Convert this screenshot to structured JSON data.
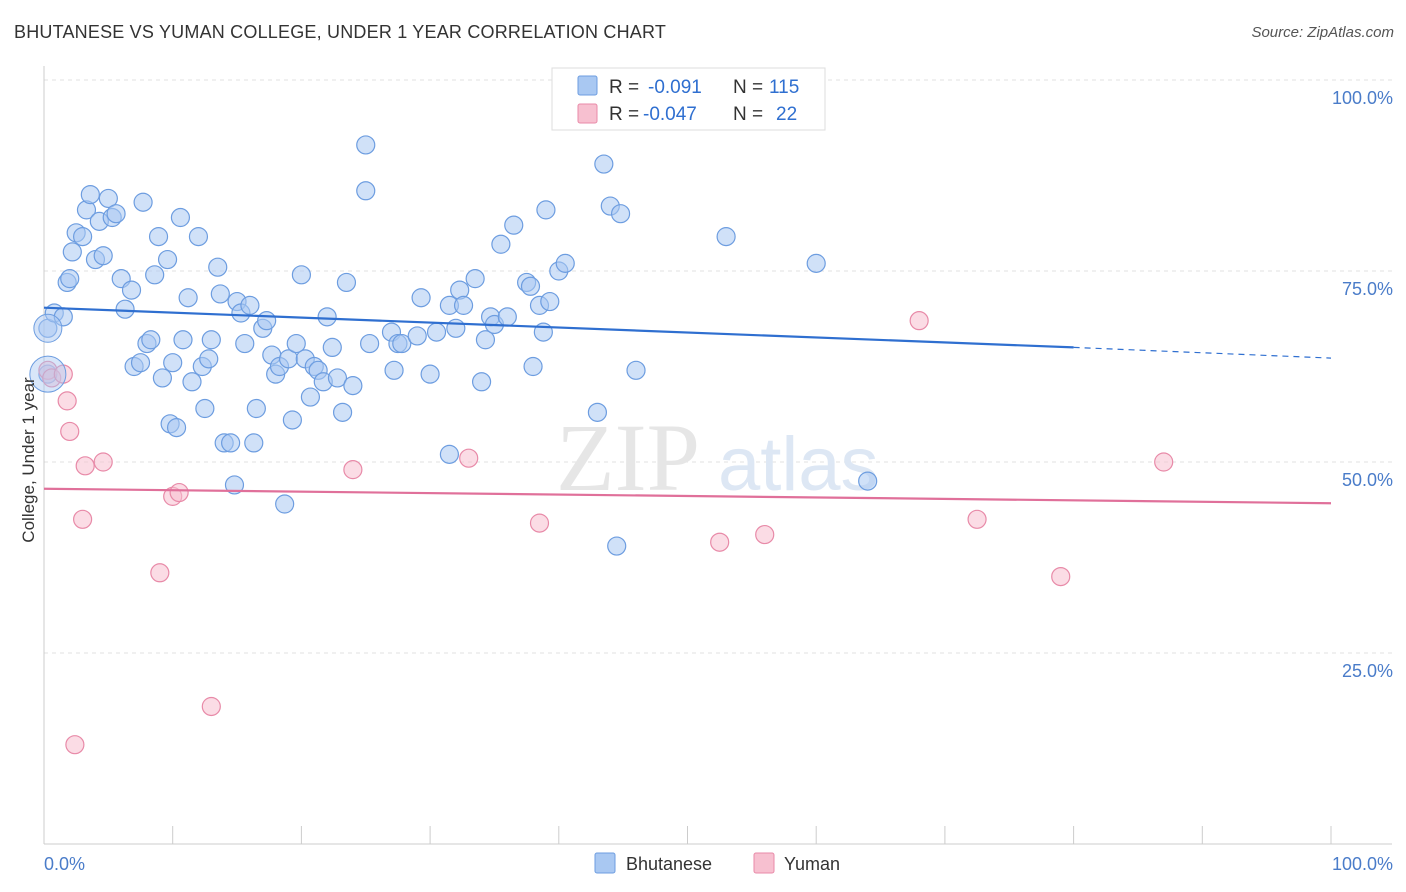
{
  "title": "BHUTANESE VS YUMAN COLLEGE, UNDER 1 YEAR CORRELATION CHART",
  "source": "Source: ZipAtlas.com",
  "watermark": {
    "zip": "ZIP",
    "atlas": "atlas"
  },
  "legend": [
    {
      "r_label": "R =",
      "r_value": "-0.091",
      "n_label": "N =",
      "n_value": "115",
      "color": "#a9c8f2",
      "stroke": "#6d9de0"
    },
    {
      "r_label": "R =",
      "r_value": "-0.047",
      "n_label": "N =",
      "n_value": "22",
      "color": "#f7c0d0",
      "stroke": "#e88aa8"
    }
  ],
  "chart_data": {
    "type": "scatter",
    "xlabel": "",
    "ylabel": "College, Under 1 year",
    "xlim": [
      0,
      100
    ],
    "ylim": [
      0,
      100
    ],
    "x_tick_labels": [
      "0.0%",
      "100.0%"
    ],
    "y_ticks": [
      25,
      50,
      75,
      100
    ],
    "y_tick_labels": [
      "25.0%",
      "50.0%",
      "75.0%",
      "100.0%"
    ],
    "series": [
      {
        "name": "Bhutanese",
        "color": "#a9c8f2",
        "stroke": "#6d9de0",
        "line_color": "#2f6fd0",
        "trend": {
          "x0": 0,
          "y0": 70.2,
          "x1": 80,
          "y1": 65.0,
          "dash_to_x": 100,
          "dash_to_y": 63.6
        },
        "points": [
          [
            0.3,
            67.5
          ],
          [
            0.3,
            61.5
          ],
          [
            0.8,
            69.5
          ],
          [
            1.5,
            69
          ],
          [
            1.8,
            73.5
          ],
          [
            2.0,
            74
          ],
          [
            2.2,
            77.5
          ],
          [
            2.5,
            80
          ],
          [
            3.0,
            79.5
          ],
          [
            3.3,
            83
          ],
          [
            3.6,
            85
          ],
          [
            4.0,
            76.5
          ],
          [
            4.3,
            81.5
          ],
          [
            4.6,
            77
          ],
          [
            5.0,
            84.5
          ],
          [
            5.3,
            82
          ],
          [
            5.6,
            82.5
          ],
          [
            6.0,
            74
          ],
          [
            6.3,
            70
          ],
          [
            6.8,
            72.5
          ],
          [
            7.0,
            62.5
          ],
          [
            7.5,
            63
          ],
          [
            7.7,
            84
          ],
          [
            8.0,
            65.5
          ],
          [
            8.3,
            66
          ],
          [
            8.6,
            74.5
          ],
          [
            8.9,
            79.5
          ],
          [
            9.2,
            61
          ],
          [
            9.6,
            76.5
          ],
          [
            9.8,
            55
          ],
          [
            10.0,
            63
          ],
          [
            10.3,
            54.5
          ],
          [
            10.6,
            82
          ],
          [
            10.8,
            66
          ],
          [
            11.2,
            71.5
          ],
          [
            11.5,
            60.5
          ],
          [
            12.0,
            79.5
          ],
          [
            12.3,
            62.5
          ],
          [
            12.5,
            57
          ],
          [
            12.8,
            63.5
          ],
          [
            13.0,
            66
          ],
          [
            13.5,
            75.5
          ],
          [
            13.7,
            72
          ],
          [
            14.0,
            52.5
          ],
          [
            14.5,
            52.5
          ],
          [
            14.8,
            47
          ],
          [
            15.0,
            71
          ],
          [
            15.3,
            69.5
          ],
          [
            15.6,
            65.5
          ],
          [
            16.0,
            70.5
          ],
          [
            16.3,
            52.5
          ],
          [
            16.5,
            57
          ],
          [
            17.0,
            67.5
          ],
          [
            17.3,
            68.5
          ],
          [
            17.7,
            64
          ],
          [
            18.0,
            61.5
          ],
          [
            18.3,
            62.5
          ],
          [
            18.7,
            44.5
          ],
          [
            19.0,
            63.5
          ],
          [
            19.3,
            55.5
          ],
          [
            19.6,
            65.5
          ],
          [
            20.0,
            74.5
          ],
          [
            20.3,
            63.5
          ],
          [
            20.7,
            58.5
          ],
          [
            21.0,
            62.5
          ],
          [
            21.3,
            62
          ],
          [
            21.7,
            60.5
          ],
          [
            22.0,
            69
          ],
          [
            22.4,
            65
          ],
          [
            22.8,
            61
          ],
          [
            23.2,
            56.5
          ],
          [
            23.5,
            73.5
          ],
          [
            24.0,
            60
          ],
          [
            25.0,
            91.5
          ],
          [
            25.0,
            85.5
          ],
          [
            25.3,
            65.5
          ],
          [
            27.0,
            67
          ],
          [
            27.2,
            62
          ],
          [
            27.5,
            65.5
          ],
          [
            27.8,
            65.5
          ],
          [
            29.0,
            66.5
          ],
          [
            29.3,
            71.5
          ],
          [
            30.0,
            61.5
          ],
          [
            30.5,
            67
          ],
          [
            31.5,
            70.5
          ],
          [
            31.5,
            51
          ],
          [
            32.0,
            67.5
          ],
          [
            32.3,
            72.5
          ],
          [
            32.6,
            70.5
          ],
          [
            33.5,
            74
          ],
          [
            34.0,
            60.5
          ],
          [
            34.3,
            66
          ],
          [
            34.7,
            69
          ],
          [
            35.0,
            68
          ],
          [
            35.5,
            78.5
          ],
          [
            36.0,
            69
          ],
          [
            36.5,
            81
          ],
          [
            37.5,
            73.5
          ],
          [
            37.8,
            73
          ],
          [
            38.0,
            62.5
          ],
          [
            38.5,
            70.5
          ],
          [
            38.8,
            67
          ],
          [
            39.0,
            83
          ],
          [
            39.3,
            71
          ],
          [
            40.0,
            75
          ],
          [
            40.5,
            76
          ],
          [
            43.0,
            56.5
          ],
          [
            43.5,
            89
          ],
          [
            44.0,
            83.5
          ],
          [
            44.5,
            39
          ],
          [
            44.8,
            82.5
          ],
          [
            46.0,
            62
          ],
          [
            53.0,
            79.5
          ],
          [
            60.0,
            76
          ],
          [
            64.0,
            47.5
          ]
        ]
      },
      {
        "name": "Yuman",
        "color": "#f7c0d0",
        "stroke": "#e88aa8",
        "line_color": "#e0709a",
        "trend": {
          "x0": 0,
          "y0": 46.5,
          "x1": 100,
          "y1": 44.6
        },
        "points": [
          [
            0.3,
            62
          ],
          [
            0.6,
            61
          ],
          [
            1.5,
            61.5
          ],
          [
            1.8,
            58
          ],
          [
            2.0,
            54
          ],
          [
            3.0,
            42.5
          ],
          [
            3.2,
            49.5
          ],
          [
            4.6,
            50
          ],
          [
            9.0,
            35.5
          ],
          [
            10.0,
            45.5
          ],
          [
            10.5,
            46
          ],
          [
            13.0,
            18
          ],
          [
            24.0,
            49
          ],
          [
            2.4,
            13
          ],
          [
            33.0,
            50.5
          ],
          [
            38.5,
            42
          ],
          [
            52.5,
            39.5
          ],
          [
            56.0,
            40.5
          ],
          [
            68.0,
            68.5
          ],
          [
            72.5,
            42.5
          ],
          [
            79.0,
            35
          ],
          [
            87.0,
            50
          ]
        ]
      }
    ]
  },
  "bottom_legend": [
    {
      "label": "Bhutanese",
      "color": "#a9c8f2",
      "stroke": "#6d9de0"
    },
    {
      "label": "Yuman",
      "color": "#f7c0d0",
      "stroke": "#e88aa8"
    }
  ]
}
